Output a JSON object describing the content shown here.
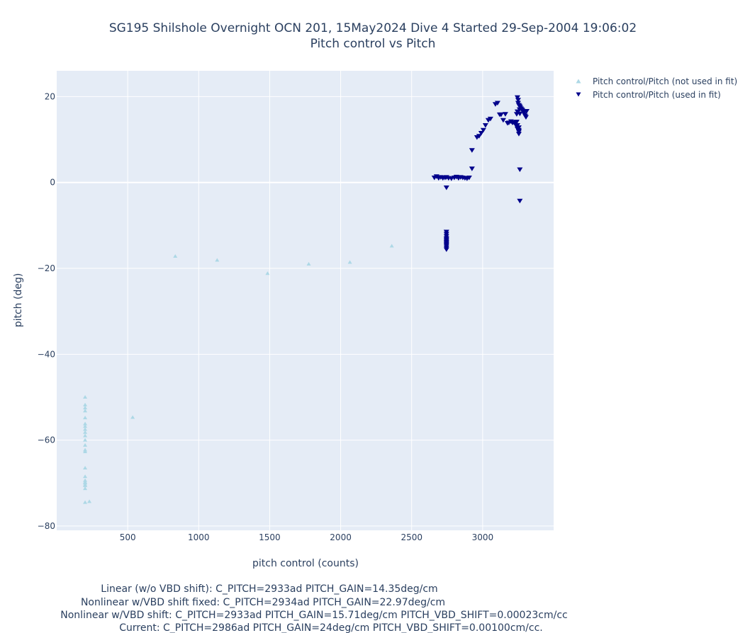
{
  "colors": {
    "plot_bg": "#e5ecf6",
    "grid": "#ffffff",
    "not_used": "#add8e6",
    "used": "#00008b",
    "text": "#2a3f5f"
  },
  "chart_data": {
    "type": "scatter",
    "title_line1": "SG195 Shilshole Overnight OCN 201, 15May2024 Dive 4 Started 29-Sep-2004 19:06:02",
    "title_line2": "Pitch control vs Pitch",
    "xlabel": "pitch control (counts)",
    "ylabel": "pitch (deg)",
    "xlim": [
      0,
      3500
    ],
    "ylim": [
      -81,
      26
    ],
    "xticks": [
      500,
      1000,
      1500,
      2000,
      2500,
      3000
    ],
    "yticks": [
      20,
      0,
      -20,
      -40,
      -60,
      -80
    ],
    "grid": true,
    "legend_position": "top-right, outside plot",
    "series": [
      {
        "name": "Pitch control/Pitch (not used in fit)",
        "marker": "triangle-up",
        "color": "#add8e6",
        "x": [
          200,
          200,
          200,
          200,
          200,
          200,
          200,
          200,
          200,
          200,
          200,
          200,
          200,
          200,
          200,
          200,
          200,
          200,
          200,
          200,
          200,
          200,
          200,
          230,
          535,
          835,
          1130,
          1485,
          1775,
          2065,
          2360
        ],
        "y": [
          -50.0,
          -51.8,
          -52.5,
          -53.2,
          -54.8,
          -56.2,
          -56.8,
          -57.5,
          -58.2,
          -59.0,
          -60.0,
          -61.2,
          -62.3,
          -62.7,
          -66.5,
          -68.5,
          -69.4,
          -70.0,
          -70.6,
          -71.3,
          -74.5,
          -70.4,
          -69.8,
          -74.3,
          -54.7,
          -17.2,
          -18.1,
          -21.2,
          -19.0,
          -18.6,
          -14.8
        ]
      },
      {
        "name": "Pitch control/Pitch (used in fit)",
        "marker": "triangle-down",
        "color": "#00008b",
        "x": [
          2660,
          2675,
          2690,
          2705,
          2720,
          2735,
          2745,
          2760,
          2780,
          2800,
          2815,
          2830,
          2845,
          2860,
          2875,
          2890,
          2905,
          2745,
          2745,
          2745,
          2745,
          2745,
          2745,
          2745,
          2745,
          2745,
          2745,
          2745,
          2745,
          2925,
          2960,
          2975,
          2990,
          3005,
          3020,
          3040,
          3055,
          3090,
          3105,
          3130,
          3160,
          3175,
          3200,
          3215,
          3230,
          3245,
          3250,
          3255,
          3260,
          3265,
          3270,
          3275,
          3280,
          3285,
          3290,
          3295,
          3300,
          3305,
          3310,
          3255,
          3255,
          3255,
          3255,
          3255,
          3245,
          3245,
          3240,
          3245,
          3250,
          3260,
          3262,
          3235,
          3240,
          3225,
          3210,
          3185,
          3145,
          3120,
          2925,
          2745,
          3262,
          3262
        ],
        "y": [
          1.1,
          1.4,
          1.0,
          1.2,
          1.0,
          1.1,
          1.2,
          1.0,
          0.9,
          1.1,
          1.3,
          1.0,
          1.2,
          1.1,
          1.0,
          0.9,
          1.1,
          -11.5,
          -12.0,
          -12.5,
          -13.0,
          -13.3,
          -13.6,
          -13.9,
          -14.2,
          -14.5,
          -14.8,
          -15.2,
          -15.6,
          7.5,
          10.5,
          10.8,
          11.5,
          12.2,
          13.3,
          14.5,
          14.8,
          18.2,
          18.5,
          15.8,
          15.9,
          13.8,
          14.2,
          14.0,
          13.6,
          19.8,
          19.2,
          18.0,
          17.8,
          17.5,
          17.2,
          17.0,
          16.8,
          16.5,
          16.2,
          15.8,
          15.5,
          15.2,
          16.6,
          12.8,
          12.2,
          11.8,
          11.3,
          11.9,
          12.5,
          13.3,
          15.9,
          16.5,
          18.5,
          17.0,
          16.0,
          13.3,
          14.1,
          14.0,
          13.9,
          13.9,
          14.5,
          15.8,
          3.2,
          -1.2,
          3.0,
          -4.3
        ]
      }
    ]
  },
  "fit_results": {
    "linear": "Linear (w/o VBD shift): C_PITCH=2933ad PITCH_GAIN=14.35deg/cm",
    "nonlinear_fixed": "Nonlinear w/VBD shift fixed: C_PITCH=2934ad PITCH_GAIN=22.97deg/cm",
    "nonlinear_shift": "Nonlinear w/VBD shift: C_PITCH=2933ad PITCH_GAIN=15.71deg/cm PITCH_VBD_SHIFT=0.00023cm/cc",
    "current": "Current: C_PITCH=2986ad PITCH_GAIN=24deg/cm PITCH_VBD_SHIFT=0.00100cm/cc."
  }
}
